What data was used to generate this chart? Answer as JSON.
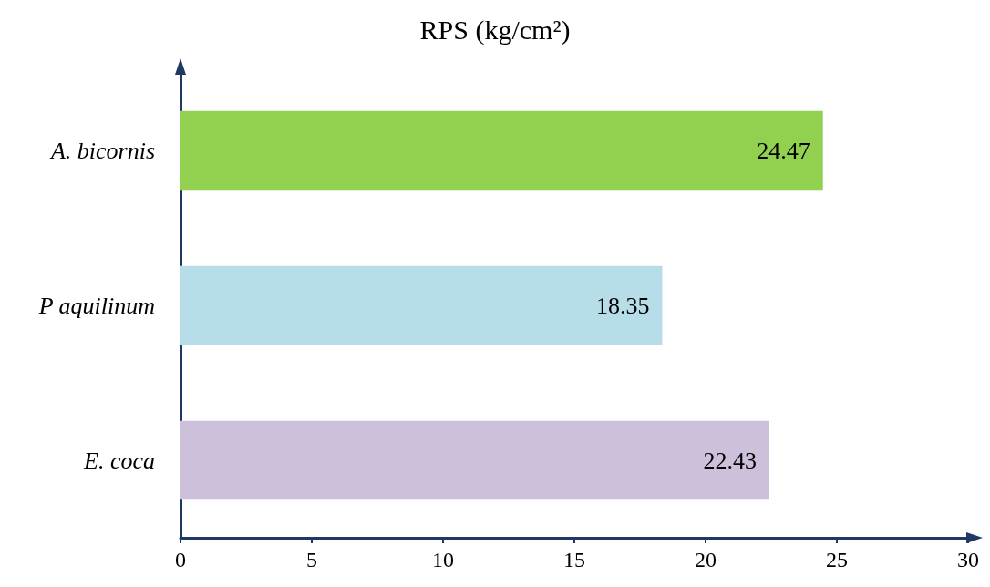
{
  "chart_data": {
    "type": "bar",
    "orientation": "horizontal",
    "title": "RPS (kg/cm²)",
    "categories": [
      "A. bicornis",
      "P aquilinum",
      "E. coca"
    ],
    "values": [
      24.47,
      18.35,
      22.43
    ],
    "colors": [
      "#92d050",
      "#b7dee8",
      "#ccc0da"
    ],
    "xlim": [
      0,
      30
    ],
    "xticks": [
      0,
      5,
      10,
      15,
      20,
      25,
      30
    ],
    "data_labels": true,
    "grid": false
  }
}
